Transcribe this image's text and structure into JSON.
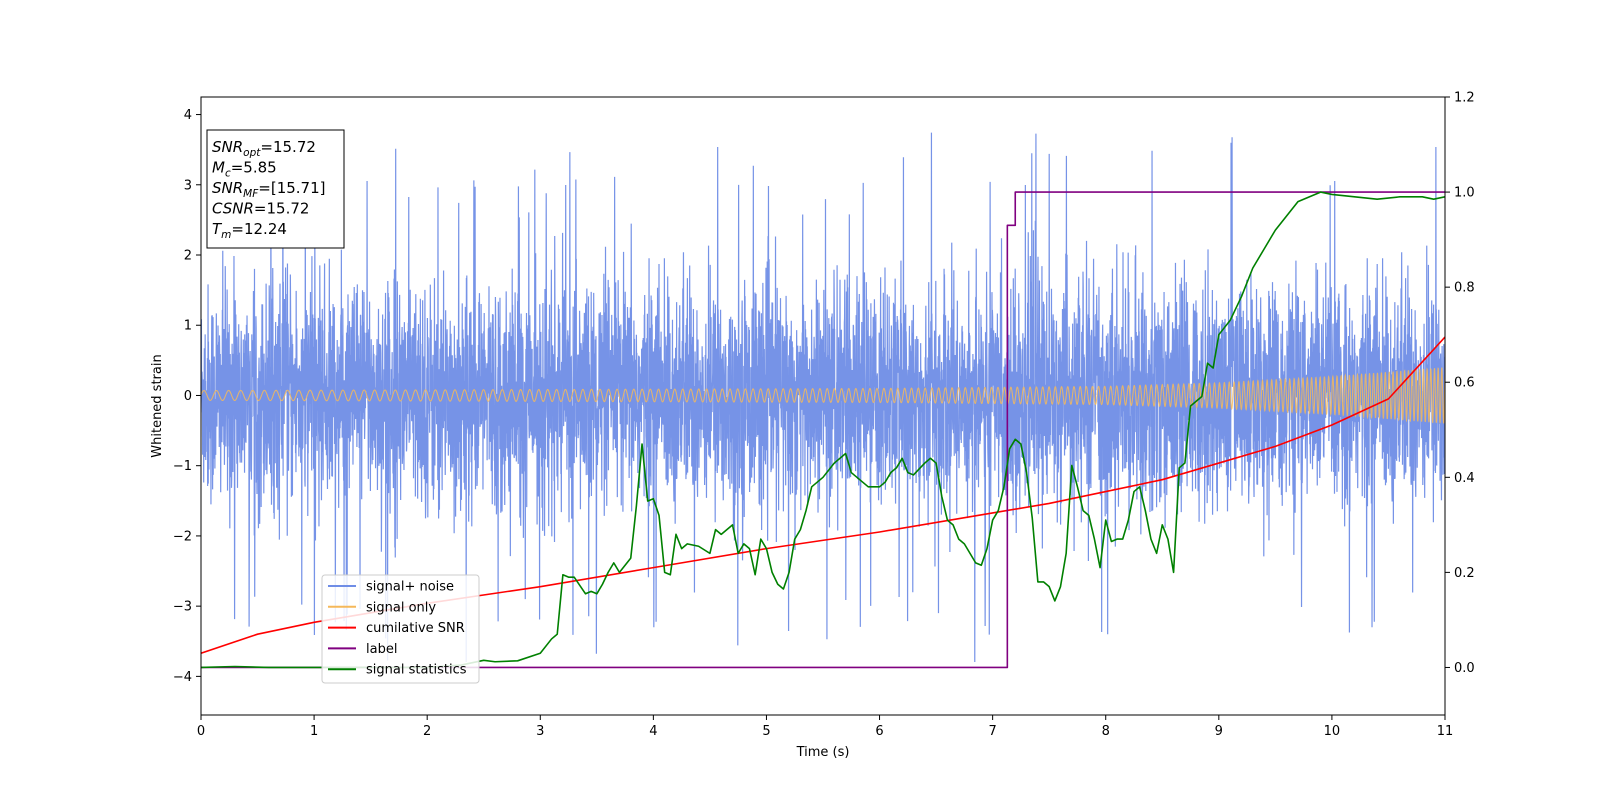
{
  "chart_data": {
    "type": "line",
    "xlabel": "Time (s)",
    "ylabel": "Whitened strain",
    "xlim": [
      0,
      11
    ],
    "ylim_left": [
      -4.55,
      4.25
    ],
    "ylim_right": [
      -0.1,
      1.2
    ],
    "x_ticks": [
      "0",
      "1",
      "2",
      "3",
      "4",
      "5",
      "6",
      "7",
      "8",
      "9",
      "10",
      "11"
    ],
    "y_ticks_left": [
      "4",
      "3",
      "2",
      "1",
      "0",
      "−1",
      "−2",
      "−3",
      "−4"
    ],
    "y_ticks_left_values": [
      4,
      3,
      2,
      1,
      0,
      -1,
      -2,
      -3,
      -4
    ],
    "y_ticks_right": [
      "1.2",
      "1.0",
      "0.8",
      "0.6",
      "0.4",
      "0.2",
      "0.0"
    ],
    "y_ticks_right_values": [
      1.2,
      1.0,
      0.8,
      0.6,
      0.4,
      0.2,
      0.0
    ],
    "grid": false,
    "legend_position": "lower-left",
    "annotation": {
      "lines": [
        {
          "base": "SNR",
          "sub": "opt",
          "value": "=15.72"
        },
        {
          "base": "M",
          "sub": "c",
          "value": "=5.85"
        },
        {
          "base": "SNR",
          "sub": "MF",
          "value": "=[15.71]"
        },
        {
          "base": "CSNR",
          "sub": "",
          "value": "=15.72"
        },
        {
          "base": "T",
          "sub": "m",
          "value": "=12.24"
        }
      ]
    },
    "series": [
      {
        "name": "signal+ noise",
        "axis": "left",
        "color": "#6f8de6",
        "kind": "noisy_band",
        "typical_amplitude": 1.5,
        "extreme_range": [
          -4.15,
          3.85
        ]
      },
      {
        "name": "signal only",
        "axis": "left",
        "color": "#f5b85a",
        "kind": "chirp",
        "amplitude_envelope": {
          "x": [
            0,
            2,
            4,
            6,
            8,
            9,
            10,
            11
          ],
          "amp": [
            0.07,
            0.08,
            0.09,
            0.1,
            0.13,
            0.18,
            0.27,
            0.4
          ]
        }
      },
      {
        "name": "cumilative SNR",
        "axis": "right",
        "color": "#ff0000",
        "x": [
          0,
          0.5,
          1,
          1.5,
          2,
          3,
          4,
          5,
          6,
          7,
          7.5,
          8,
          8.5,
          9,
          9.5,
          10,
          10.5,
          11
        ],
        "y": [
          0.03,
          0.07,
          0.095,
          0.115,
          0.135,
          0.17,
          0.21,
          0.25,
          0.285,
          0.325,
          0.345,
          0.37,
          0.395,
          0.43,
          0.465,
          0.51,
          0.565,
          0.695
        ]
      },
      {
        "name": "label",
        "axis": "right",
        "color": "#800080",
        "x": [
          0,
          7.13,
          7.13,
          7.2,
          7.2,
          11
        ],
        "y": [
          0,
          0,
          0.93,
          0.93,
          1.0,
          1.0
        ]
      },
      {
        "name": "signal statistics",
        "axis": "right",
        "color": "#008000",
        "x": [
          0,
          0.3,
          0.6,
          1,
          1.5,
          2,
          2.3,
          2.5,
          2.6,
          2.8,
          3,
          3.1,
          3.15,
          3.2,
          3.25,
          3.3,
          3.4,
          3.45,
          3.5,
          3.55,
          3.6,
          3.65,
          3.7,
          3.8,
          3.85,
          3.9,
          3.95,
          4.0,
          4.05,
          4.1,
          4.15,
          4.2,
          4.25,
          4.3,
          4.4,
          4.5,
          4.55,
          4.6,
          4.65,
          4.7,
          4.75,
          4.8,
          4.85,
          4.9,
          4.95,
          5.0,
          5.05,
          5.1,
          5.15,
          5.2,
          5.25,
          5.3,
          5.35,
          5.4,
          5.45,
          5.5,
          5.6,
          5.7,
          5.75,
          5.8,
          5.85,
          5.9,
          6.0,
          6.05,
          6.1,
          6.15,
          6.2,
          6.25,
          6.3,
          6.4,
          6.45,
          6.5,
          6.55,
          6.6,
          6.65,
          6.7,
          6.75,
          6.8,
          6.85,
          6.9,
          6.95,
          7.0,
          7.05,
          7.1,
          7.15,
          7.2,
          7.25,
          7.3,
          7.35,
          7.4,
          7.45,
          7.5,
          7.55,
          7.6,
          7.65,
          7.7,
          7.75,
          7.8,
          7.85,
          7.9,
          7.95,
          8.0,
          8.05,
          8.1,
          8.15,
          8.2,
          8.25,
          8.3,
          8.35,
          8.4,
          8.45,
          8.5,
          8.55,
          8.6,
          8.65,
          8.7,
          8.75,
          8.8,
          8.85,
          8.9,
          8.95,
          9.0,
          9.1,
          9.2,
          9.3,
          9.4,
          9.5,
          9.6,
          9.7,
          9.8,
          9.9,
          10.0,
          10.2,
          10.4,
          10.6,
          10.8,
          10.9,
          11.0
        ],
        "y": [
          0.0,
          0.002,
          0.0,
          0.0,
          0.0,
          0.0,
          0.005,
          0.015,
          0.012,
          0.014,
          0.03,
          0.06,
          0.07,
          0.195,
          0.19,
          0.19,
          0.155,
          0.16,
          0.155,
          0.175,
          0.2,
          0.22,
          0.2,
          0.23,
          0.34,
          0.47,
          0.35,
          0.355,
          0.32,
          0.2,
          0.195,
          0.28,
          0.25,
          0.26,
          0.255,
          0.24,
          0.29,
          0.28,
          0.29,
          0.3,
          0.24,
          0.26,
          0.25,
          0.195,
          0.27,
          0.25,
          0.2,
          0.175,
          0.165,
          0.2,
          0.27,
          0.29,
          0.33,
          0.38,
          0.39,
          0.4,
          0.43,
          0.45,
          0.41,
          0.4,
          0.39,
          0.38,
          0.38,
          0.39,
          0.41,
          0.42,
          0.44,
          0.41,
          0.405,
          0.43,
          0.44,
          0.43,
          0.36,
          0.31,
          0.3,
          0.27,
          0.26,
          0.24,
          0.22,
          0.215,
          0.25,
          0.31,
          0.33,
          0.38,
          0.46,
          0.48,
          0.47,
          0.41,
          0.315,
          0.18,
          0.18,
          0.17,
          0.14,
          0.17,
          0.24,
          0.425,
          0.38,
          0.33,
          0.32,
          0.27,
          0.21,
          0.31,
          0.265,
          0.27,
          0.27,
          0.31,
          0.37,
          0.38,
          0.33,
          0.27,
          0.24,
          0.3,
          0.27,
          0.2,
          0.42,
          0.43,
          0.55,
          0.56,
          0.57,
          0.64,
          0.63,
          0.7,
          0.73,
          0.78,
          0.84,
          0.88,
          0.92,
          0.95,
          0.98,
          0.99,
          1.0,
          0.995,
          0.99,
          0.985,
          0.99,
          0.99,
          0.985,
          0.99
        ]
      }
    ]
  }
}
